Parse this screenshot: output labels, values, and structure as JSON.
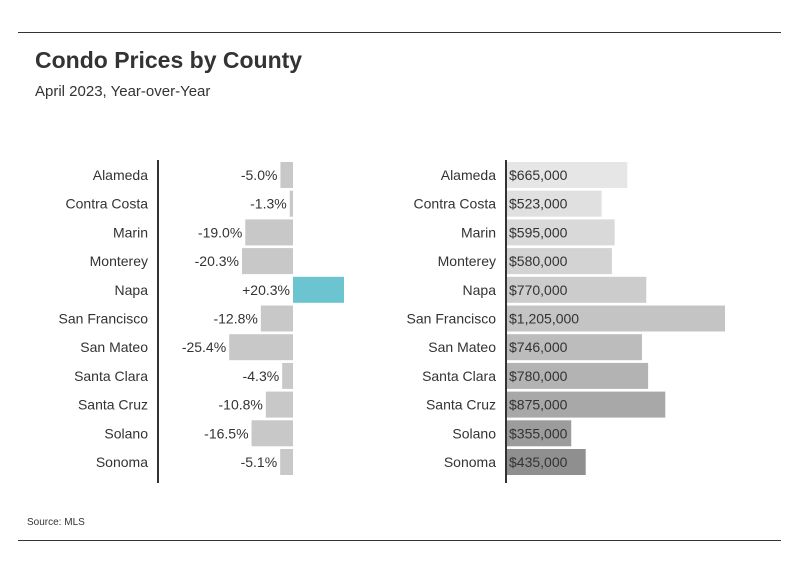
{
  "header": {
    "title": "Condo Prices by County",
    "subtitle": "April 2023, Year-over-Year"
  },
  "footer": {
    "source": "Source: MLS"
  },
  "colors": {
    "text": "#333333",
    "axis": "#333333",
    "change_neutral": "#c8c8c8",
    "change_highlight": "#6bc4cf",
    "price_shades": [
      "#e6e6e6",
      "#e0e0e0",
      "#d9d9d9",
      "#d3d3d3",
      "#cccccc",
      "#c4c4c4",
      "#bcbcbc",
      "#b3b3b3",
      "#a8a8a8",
      "#9c9c9c",
      "#8f8f8f"
    ]
  },
  "chart_data": [
    {
      "type": "bar",
      "orientation": "horizontal",
      "categories": [
        "Alameda",
        "Contra Costa",
        "Marin",
        "Monterey",
        "Napa",
        "San Francisco",
        "San Mateo",
        "Santa Clara",
        "Santa Cruz",
        "Solano",
        "Sonoma"
      ],
      "values": [
        -5.0,
        -1.3,
        -19.0,
        -20.3,
        20.3,
        -12.8,
        -25.4,
        -4.3,
        -10.8,
        -16.5,
        -5.1
      ],
      "labels": [
        "-5.0%",
        "-1.3%",
        "-19.0%",
        "-20.3%",
        "+20.3%",
        "-12.8%",
        "-25.4%",
        "-4.3%",
        "-10.8%",
        "-16.5%",
        "-5.1%"
      ],
      "unit": "%",
      "xlim": [
        -25.4,
        20.3
      ],
      "grid": false,
      "legend": "none"
    },
    {
      "type": "bar",
      "orientation": "horizontal",
      "categories": [
        "Alameda",
        "Contra Costa",
        "Marin",
        "Monterey",
        "Napa",
        "San Francisco",
        "San Mateo",
        "Santa Clara",
        "Santa Cruz",
        "Solano",
        "Sonoma"
      ],
      "values": [
        665000,
        523000,
        595000,
        580000,
        770000,
        1205000,
        746000,
        780000,
        875000,
        355000,
        435000
      ],
      "labels": [
        "$665,000",
        "$523,000",
        "$595,000",
        "$580,000",
        "$770,000",
        "$1,205,000",
        "$746,000",
        "$780,000",
        "$875,000",
        "$355,000",
        "$435,000"
      ],
      "unit": "$",
      "xlim": [
        0,
        1205000
      ],
      "grid": false,
      "legend": "none"
    }
  ]
}
